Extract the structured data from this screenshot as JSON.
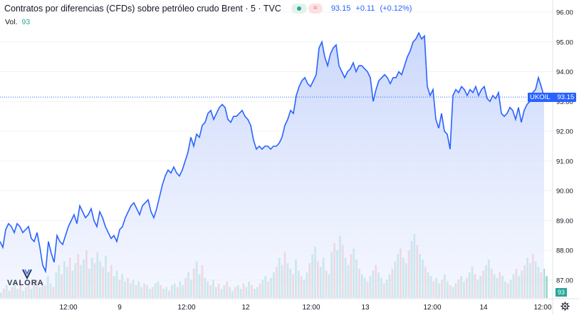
{
  "header": {
    "title": "Contratos por diferencias (CFDs) sobre petróleo crudo Brent · 5 · TVC",
    "last": "93.15",
    "change": "+0.11",
    "change_pct": "(+0.12%)",
    "wave_icon": "≈"
  },
  "volume": {
    "label": "Vol.",
    "value": "93"
  },
  "price_tag": {
    "symbol": "UKOIL",
    "value": "93.15"
  },
  "volume_tag": "93",
  "logo_text": "VALORA",
  "colors": {
    "line": "#2962ff",
    "area_top": "#cbd8fc",
    "vol_up": "#26a69a",
    "vol_down": "#ef5350"
  },
  "chart_data": {
    "type": "area",
    "ylim": [
      86.7,
      96.2
    ],
    "y_ticks": [
      "96.00",
      "95.00",
      "94.00",
      "93.00",
      "92.00",
      "91.00",
      "90.00",
      "89.00",
      "88.00",
      "87.00"
    ],
    "x_ticks": [
      "12:00",
      "9",
      "12:00",
      "12",
      "12:00",
      "13",
      "12:00",
      "14",
      "12:00"
    ],
    "last_price": 93.15,
    "series": [
      {
        "x": [
          0,
          4,
          8,
          12,
          16,
          20,
          24,
          28,
          32,
          36,
          40,
          44,
          48,
          52,
          56,
          60,
          64,
          68,
          72,
          76,
          80,
          84,
          88,
          92,
          96,
          100,
          104,
          108,
          112,
          116,
          120,
          124,
          128,
          132,
          136,
          140,
          144,
          148,
          152,
          156,
          160,
          164,
          168,
          172,
          176,
          180,
          184,
          188,
          192,
          196,
          200,
          204,
          208,
          212,
          216,
          220,
          224,
          228,
          232,
          236,
          240,
          244,
          248,
          252,
          256,
          260,
          264,
          268,
          272,
          276,
          280,
          284,
          288,
          292,
          296,
          300,
          304,
          308,
          312,
          316,
          320,
          324,
          328,
          332,
          336,
          340,
          344,
          348,
          352,
          356,
          360,
          364,
          368,
          372,
          376,
          380,
          384,
          388,
          392,
          396,
          400,
          404,
          408,
          412,
          416,
          420,
          424,
          428,
          432,
          436,
          440,
          444,
          448,
          452,
          456,
          460,
          464,
          468,
          472,
          476,
          480,
          484,
          488,
          492,
          496,
          500,
          504,
          508,
          512,
          516,
          520,
          524,
          528,
          532,
          536,
          540,
          544,
          548,
          552,
          556,
          560,
          564,
          568,
          572,
          576,
          580,
          584,
          588,
          592,
          596,
          600,
          604,
          608,
          612,
          616,
          620,
          624,
          628,
          632,
          636,
          640,
          644,
          648,
          652,
          656,
          660,
          664,
          668,
          672,
          676,
          680,
          684,
          688,
          692,
          696,
          700,
          704,
          708,
          712,
          716,
          720,
          724,
          728,
          732,
          736,
          740,
          744,
          748,
          752,
          756,
          760,
          764
        ],
        "values": [
          88.3,
          88.1,
          88.7,
          88.9,
          88.8,
          88.6,
          88.9,
          88.8,
          88.6,
          88.7,
          88.8,
          88.4,
          88.3,
          88.6,
          88.1,
          87.5,
          87.3,
          88.3,
          87.9,
          87.6,
          88.5,
          88.3,
          88.2,
          88.5,
          88.8,
          89.0,
          89.2,
          88.9,
          89.5,
          89.3,
          89.1,
          89.2,
          89.4,
          89.0,
          88.8,
          89.3,
          89.1,
          88.8,
          88.6,
          88.4,
          88.5,
          88.3,
          88.7,
          88.8,
          89.1,
          89.3,
          89.5,
          89.6,
          89.4,
          89.2,
          89.5,
          89.6,
          89.7,
          89.3,
          89.1,
          89.4,
          89.8,
          90.2,
          90.5,
          90.7,
          90.6,
          90.8,
          90.6,
          90.5,
          90.7,
          91.0,
          91.3,
          91.8,
          91.5,
          91.9,
          91.8,
          92.2,
          92.3,
          92.6,
          92.7,
          92.4,
          92.6,
          92.8,
          92.9,
          92.8,
          92.4,
          92.3,
          92.5,
          92.5,
          92.6,
          92.7,
          92.5,
          92.4,
          92.2,
          91.7,
          91.4,
          91.5,
          91.4,
          91.5,
          91.5,
          91.4,
          91.5,
          91.5,
          91.6,
          91.8,
          92.2,
          92.4,
          92.7,
          92.6,
          93.2,
          93.5,
          93.7,
          93.8,
          93.6,
          93.5,
          93.7,
          93.9,
          94.8,
          95.0,
          94.5,
          94.2,
          94.6,
          94.8,
          94.9,
          94.2,
          94.0,
          93.8,
          94.0,
          94.1,
          94.3,
          94.0,
          94.2,
          94.2,
          94.1,
          94.0,
          93.8,
          93.0,
          93.4,
          93.7,
          93.8,
          93.9,
          93.8,
          93.6,
          93.8,
          93.8,
          94.0,
          93.9,
          94.2,
          94.5,
          94.7,
          95.0,
          95.1,
          95.3,
          95.1,
          95.2,
          93.5,
          93.2,
          93.4,
          92.4,
          92.1,
          92.6,
          92.0,
          91.9,
          91.4,
          93.2,
          93.4,
          93.3,
          93.5,
          93.4,
          93.2,
          93.4,
          93.3,
          93.5,
          93.2,
          93.4,
          93.5,
          93.1,
          93.0,
          93.2,
          93.1,
          93.3,
          92.6,
          92.5,
          92.6,
          92.8,
          92.7,
          92.4,
          92.8,
          92.3,
          92.7,
          92.9,
          93.0,
          93.3,
          93.4,
          93.8,
          93.5,
          93.15
        ]
      }
    ],
    "volume": [
      3,
      5,
      7,
      4,
      6,
      8,
      5,
      9,
      4,
      6,
      7,
      5,
      8,
      10,
      6,
      9,
      7,
      12,
      8,
      6,
      14,
      18,
      13,
      20,
      17,
      22,
      15,
      19,
      24,
      18,
      21,
      26,
      16,
      22,
      19,
      25,
      20,
      17,
      23,
      14,
      18,
      12,
      15,
      10,
      13,
      9,
      11,
      8,
      10,
      7,
      9,
      6,
      8,
      7,
      5,
      6,
      8,
      9,
      7,
      5,
      6,
      4,
      7,
      8,
      6,
      9,
      7,
      11,
      14,
      10,
      16,
      20,
      13,
      18,
      11,
      9,
      7,
      10,
      6,
      8,
      5,
      7,
      9,
      6,
      4,
      6,
      7,
      5,
      8,
      6,
      9,
      7,
      5,
      6,
      8,
      10,
      12,
      9,
      11,
      14,
      17,
      22,
      18,
      25,
      19,
      16,
      13,
      21,
      15,
      12,
      10,
      14,
      19,
      24,
      28,
      20,
      17,
      22,
      15,
      13,
      25,
      30,
      26,
      34,
      29,
      22,
      18,
      24,
      27,
      21,
      16,
      13,
      11,
      9,
      12,
      15,
      18,
      14,
      11,
      8,
      10,
      13,
      16,
      20,
      24,
      27,
      22,
      19,
      26,
      31,
      35,
      29,
      24,
      21,
      17,
      14,
      12,
      9,
      11,
      8,
      10,
      13,
      9,
      7,
      6,
      8,
      10,
      12,
      9,
      11,
      14,
      17,
      13,
      10,
      12,
      15,
      18,
      21,
      16,
      13,
      11,
      14,
      12,
      9,
      8,
      10,
      13,
      16,
      12,
      15,
      18,
      22,
      19,
      24,
      20,
      17,
      14,
      16,
      12
    ]
  }
}
